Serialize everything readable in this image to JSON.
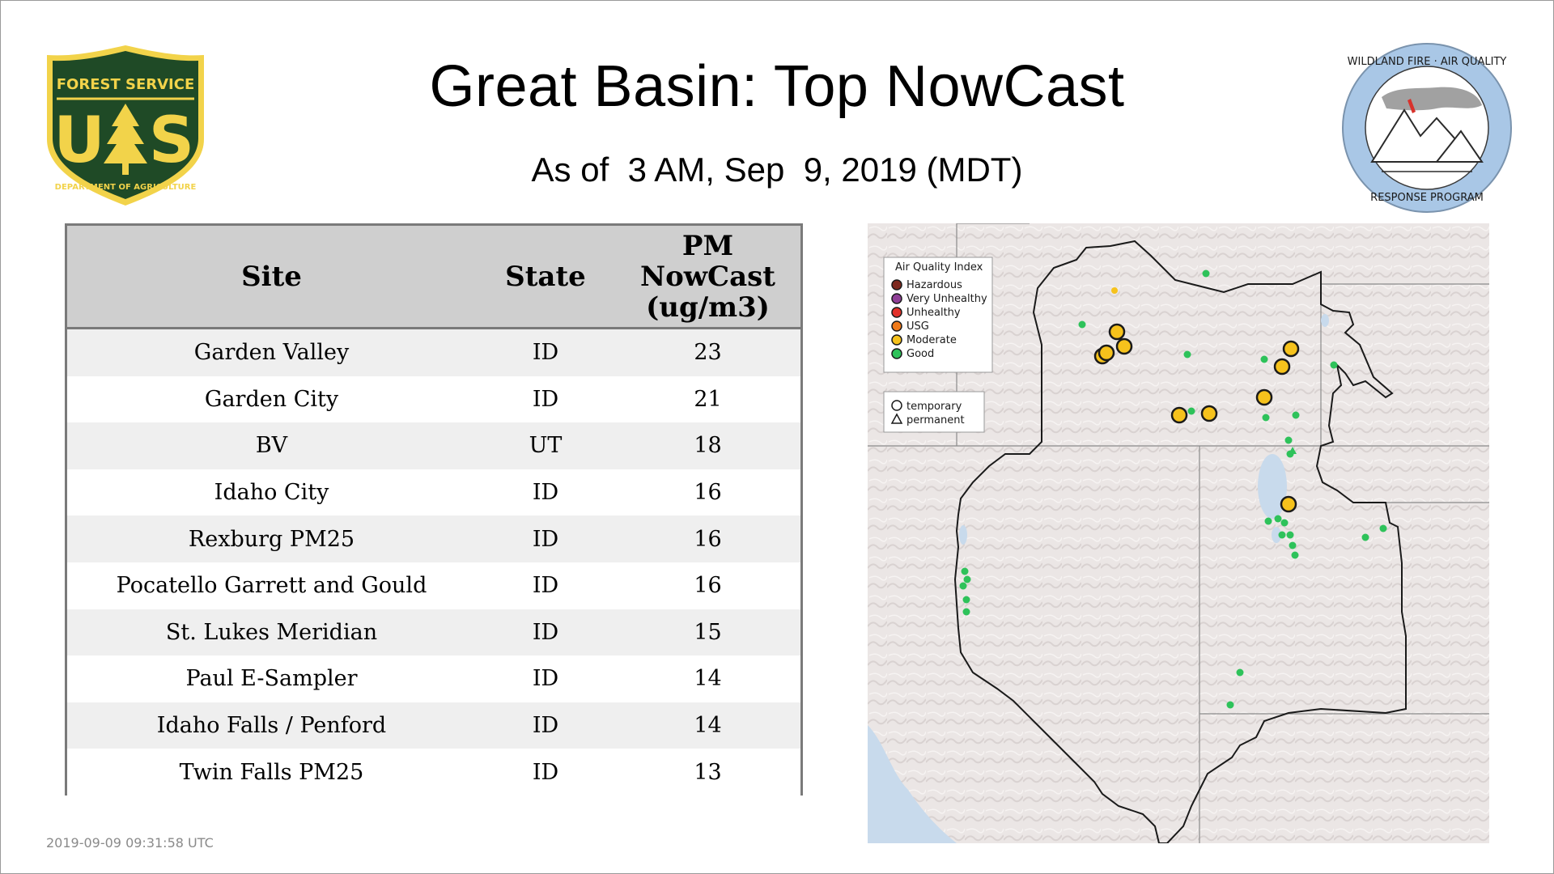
{
  "header": {
    "title": "Great Basin: Top NowCast",
    "subtitle": "As of  3 AM, Sep  9, 2019 (MDT)"
  },
  "logos": {
    "forest_service": {
      "top_text": "FOREST SERVICE",
      "letters_left": "U",
      "letters_right": "S",
      "bottom_text": "DEPARTMENT OF AGRICULTURE",
      "colors": {
        "green": "#1f4a26",
        "gold": "#f2d34a"
      }
    },
    "wildland": {
      "top_text": "WILDLAND FIRE · AIR QUALITY",
      "bottom_text": "RESPONSE PROGRAM",
      "colors": {
        "ring": "#a9c7e6",
        "fire": "#d8322c"
      }
    }
  },
  "table": {
    "headers": [
      "Site",
      "State",
      "PM NowCast (ug/m3)"
    ],
    "rows": [
      {
        "site": "Garden Valley",
        "state": "ID",
        "value": "23"
      },
      {
        "site": "Garden City",
        "state": "ID",
        "value": "21"
      },
      {
        "site": "BV",
        "state": "UT",
        "value": "18"
      },
      {
        "site": "Idaho City",
        "state": "ID",
        "value": "16"
      },
      {
        "site": "Rexburg PM25",
        "state": "ID",
        "value": "16"
      },
      {
        "site": "Pocatello Garrett and Gould",
        "state": "ID",
        "value": "16"
      },
      {
        "site": "St. Lukes Meridian",
        "state": "ID",
        "value": "15"
      },
      {
        "site": "Paul E-Sampler",
        "state": "ID",
        "value": "14"
      },
      {
        "site": "Idaho Falls / Penford",
        "state": "ID",
        "value": "14"
      },
      {
        "site": "Twin Falls PM25",
        "state": "ID",
        "value": "13"
      }
    ]
  },
  "map": {
    "legend": {
      "title": "Air Quality Index",
      "items": [
        {
          "label": "Hazardous",
          "color": "#7e2a20"
        },
        {
          "label": "Very Unhealthy",
          "color": "#8f3f97"
        },
        {
          "label": "Unhealthy",
          "color": "#e2312a"
        },
        {
          "label": "USG",
          "color": "#f07a1a"
        },
        {
          "label": "Moderate",
          "color": "#f6c21c"
        },
        {
          "label": "Good",
          "color": "#2ec25a"
        }
      ],
      "shapes": [
        {
          "label": "temporary",
          "shape": "circle"
        },
        {
          "label": "permanent",
          "shape": "triangle"
        }
      ]
    },
    "colors": {
      "moderate": "#f6c21c",
      "good": "#2ec25a",
      "terrain": "#ece8e6",
      "water": "#c8daec"
    }
  },
  "footer": {
    "timestamp": "2019-09-09 09:31:58 UTC"
  }
}
